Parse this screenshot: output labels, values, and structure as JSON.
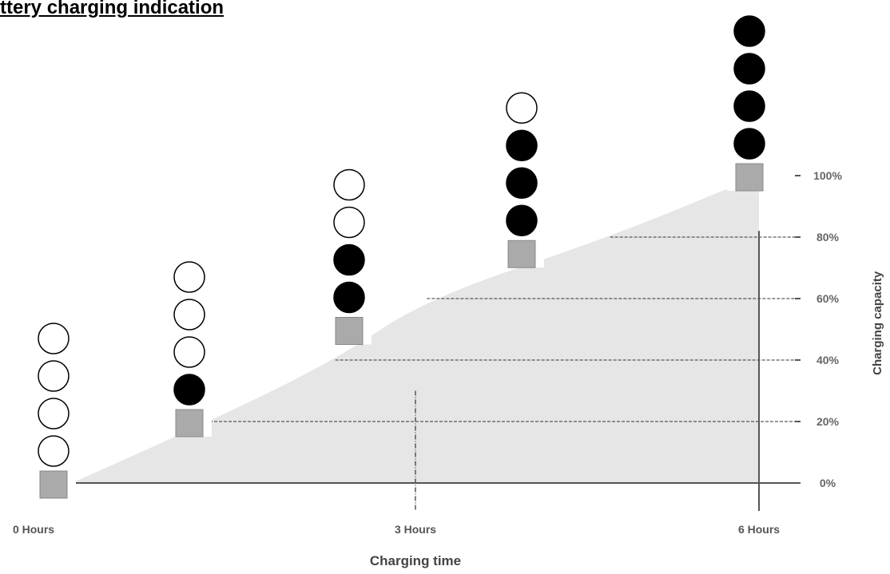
{
  "title": "ttery charging indication",
  "chart_data": {
    "type": "area",
    "title": "ttery charging indication",
    "xlabel": "Charging time",
    "ylabel": "Charging capacity",
    "x_ticks": [
      {
        "value": 0,
        "label": "0 Hours"
      },
      {
        "value": 3,
        "label": "3 Hours"
      },
      {
        "value": 6,
        "label": "6 Hours"
      }
    ],
    "y_ticks": [
      {
        "value": 0,
        "label": "0%"
      },
      {
        "value": 20,
        "label": "20%"
      },
      {
        "value": 40,
        "label": "40%"
      },
      {
        "value": 60,
        "label": "60%"
      },
      {
        "value": 80,
        "label": "80%"
      },
      {
        "value": 100,
        "label": "100%"
      }
    ],
    "xlim": [
      0,
      6
    ],
    "ylim": [
      0,
      100
    ],
    "curve": [
      {
        "x": 0,
        "y": 0
      },
      {
        "x": 1.2,
        "y": 20
      },
      {
        "x": 2.3,
        "y": 40
      },
      {
        "x": 3.1,
        "y": 60
      },
      {
        "x": 4.7,
        "y": 80
      },
      {
        "x": 6,
        "y": 100
      }
    ],
    "indicators": [
      {
        "time": 0,
        "capacity": 0,
        "lit_leds": 0,
        "total_leds": 4
      },
      {
        "time": 1.0,
        "capacity": 20,
        "lit_leds": 1,
        "total_leds": 4
      },
      {
        "time": 2.3,
        "capacity": 50,
        "lit_leds": 2,
        "total_leds": 4
      },
      {
        "time": 3.8,
        "capacity": 75,
        "lit_leds": 3,
        "total_leds": 4
      },
      {
        "time": 6,
        "capacity": 100,
        "lit_leds": 4,
        "total_leds": 4
      }
    ],
    "colors": {
      "area": "#e6e6e6",
      "axis": "#555555",
      "led_on": "#000000",
      "led_off": "#ffffff",
      "indicator_box": "#aaaaaa",
      "guide": "#333333"
    }
  }
}
